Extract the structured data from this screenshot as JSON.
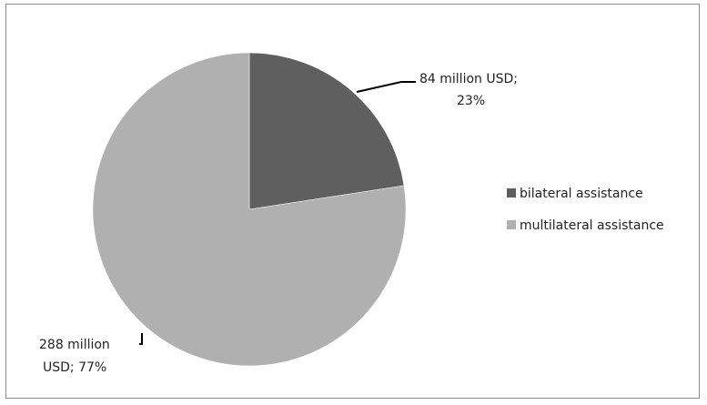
{
  "chart_data": {
    "type": "pie",
    "slices": [
      {
        "label": "bilateral assistance",
        "value": 84,
        "percent": 23,
        "color": "#5f5f5f",
        "data_label": [
          "84 million USD;",
          "23%"
        ]
      },
      {
        "label": "multilateral assistance",
        "value": 288,
        "percent": 77,
        "color": "#b0b0b0",
        "data_label": [
          "288 million",
          "USD;  77%"
        ]
      }
    ],
    "legend_position": "right"
  },
  "colors": {
    "frame": "#8c8c8c",
    "leader": "#000000"
  }
}
